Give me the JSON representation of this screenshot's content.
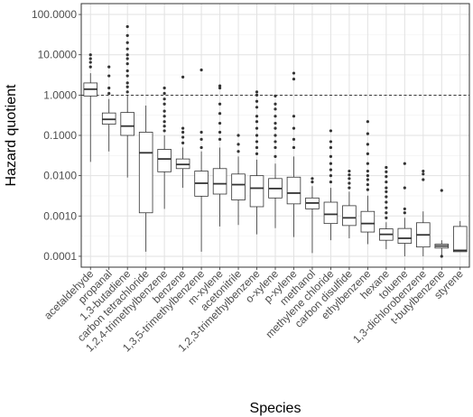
{
  "chart_data": {
    "type": "box",
    "xlabel": "Species",
    "ylabel": "Hazard quotient",
    "yscale": "log",
    "ylim": [
      0.0001,
      100
    ],
    "yticks": [
      {
        "value": 0.0001,
        "label": "0.0001"
      },
      {
        "value": 0.001,
        "label": "0.0010"
      },
      {
        "value": 0.01,
        "label": "0.0100"
      },
      {
        "value": 0.1,
        "label": "0.1000"
      },
      {
        "value": 1,
        "label": "1.0000"
      },
      {
        "value": 10,
        "label": "10.0000"
      },
      {
        "value": 100,
        "label": "100.0000"
      }
    ],
    "reference_line": {
      "value": 1,
      "style": "dashed"
    },
    "grid": true,
    "series": [
      {
        "category": "acetaldehyde",
        "whisker_low": 0.022,
        "q1": 0.95,
        "median": 1.4,
        "q3": 2.0,
        "whisker_high": 3.5,
        "outliers": [
          5,
          6.5,
          8,
          10
        ]
      },
      {
        "category": "propanal",
        "whisker_low": 0.04,
        "q1": 0.19,
        "median": 0.25,
        "q3": 0.36,
        "whisker_high": 0.8,
        "outliers": [
          1.1,
          1.5,
          3,
          5
        ]
      },
      {
        "category": "1,3-butadiene",
        "whisker_low": 0.009,
        "q1": 0.1,
        "median": 0.17,
        "q3": 0.37,
        "whisker_high": 1.0,
        "outliers": [
          1.2,
          1.6,
          2,
          3,
          4,
          6,
          8,
          10,
          14,
          20,
          30,
          50
        ]
      },
      {
        "category": "carbon tetrachloride",
        "whisker_low": 0.00013,
        "q1": 0.0012,
        "median": 0.037,
        "q3": 0.12,
        "whisker_high": 0.55,
        "outliers": []
      },
      {
        "category": "1,2,4-trimethylbenzene",
        "whisker_low": 0.0015,
        "q1": 0.0125,
        "median": 0.026,
        "q3": 0.045,
        "whisker_high": 0.1,
        "outliers": [
          0.13,
          0.17,
          0.22,
          0.3,
          0.4,
          0.6,
          0.8,
          1.1,
          1.5
        ]
      },
      {
        "category": "benzene",
        "whisker_low": 0.005,
        "q1": 0.015,
        "median": 0.019,
        "q3": 0.026,
        "whisker_high": 0.05,
        "outliers": [
          0.065,
          0.09,
          0.12,
          0.15,
          2.8
        ]
      },
      {
        "category": "1,3,5-trimethylbenzene",
        "whisker_low": 0.00013,
        "q1": 0.0031,
        "median": 0.0065,
        "q3": 0.013,
        "whisker_high": 0.04,
        "outliers": [
          0.05,
          0.08,
          0.12,
          4.2
        ]
      },
      {
        "category": "m-xylene",
        "whisker_low": 0.00055,
        "q1": 0.0035,
        "median": 0.0063,
        "q3": 0.015,
        "whisker_high": 0.05,
        "outliers": [
          0.08,
          0.12,
          0.2,
          0.35,
          0.6,
          1.5,
          1.7
        ]
      },
      {
        "category": "acetonitrile",
        "whisker_low": 0.0006,
        "q1": 0.0025,
        "median": 0.006,
        "q3": 0.011,
        "whisker_high": 0.03,
        "outliers": [
          0.04,
          0.06,
          0.1
        ]
      },
      {
        "category": "1,2,3-trimethylbenzene",
        "whisker_low": 0.00035,
        "q1": 0.0017,
        "median": 0.0049,
        "q3": 0.01,
        "whisker_high": 0.025,
        "outliers": [
          0.035,
          0.05,
          0.07,
          0.1,
          0.15,
          0.22,
          0.3,
          0.5,
          0.7,
          1.0,
          1.2
        ]
      },
      {
        "category": "o-xylene",
        "whisker_low": 0.0005,
        "q1": 0.0028,
        "median": 0.0048,
        "q3": 0.0085,
        "whisker_high": 0.02,
        "outliers": [
          0.03,
          0.05,
          0.07,
          0.1,
          0.15,
          0.2,
          0.3,
          0.45,
          0.6,
          0.95
        ]
      },
      {
        "category": "p-xylene",
        "whisker_low": 0.0003,
        "q1": 0.002,
        "median": 0.0037,
        "q3": 0.0092,
        "whisker_high": 0.03,
        "outliers": [
          0.05,
          0.08,
          0.15,
          0.3,
          2.5,
          3.5
        ]
      },
      {
        "category": "methanol",
        "whisker_low": 0.00012,
        "q1": 0.0015,
        "median": 0.0021,
        "q3": 0.0028,
        "whisker_high": 0.0055,
        "outliers": [
          0.007,
          0.0085
        ]
      },
      {
        "category": "methylene chloride",
        "whisker_low": 0.00025,
        "q1": 0.00065,
        "median": 0.0011,
        "q3": 0.0022,
        "whisker_high": 0.005,
        "outliers": [
          0.007,
          0.01,
          0.014,
          0.02,
          0.03,
          0.05,
          0.07,
          0.13
        ]
      },
      {
        "category": "carbon disulfide",
        "whisker_low": 0.00028,
        "q1": 0.00058,
        "median": 0.0009,
        "q3": 0.0018,
        "whisker_high": 0.004,
        "outliers": [
          0.005,
          0.0065,
          0.0085,
          0.0105,
          0.013
        ]
      },
      {
        "category": "ethylbenzene",
        "whisker_low": 0.0002,
        "q1": 0.0004,
        "median": 0.00065,
        "q3": 0.0013,
        "whisker_high": 0.0032,
        "outliers": [
          0.0045,
          0.006,
          0.008,
          0.01,
          0.013,
          0.02,
          0.035,
          0.06,
          0.11,
          0.22
        ]
      },
      {
        "category": "hexane",
        "whisker_low": 0.00015,
        "q1": 0.00025,
        "median": 0.00035,
        "q3": 0.00048,
        "whisker_high": 0.0007,
        "outliers": [
          0.0009,
          0.0012,
          0.0016,
          0.0022,
          0.003,
          0.004,
          0.005,
          0.007,
          0.0095,
          0.0125,
          0.016
        ]
      },
      {
        "category": "toluene",
        "whisker_low": 0.0001,
        "q1": 0.00021,
        "median": 0.00028,
        "q3": 0.00049,
        "whisker_high": 0.0009,
        "outliers": [
          0.0012,
          0.0015,
          0.005,
          0.02
        ]
      },
      {
        "category": "1,3-dichlorobenzene",
        "whisker_low": 0.0001,
        "q1": 0.00017,
        "median": 0.00034,
        "q3": 0.00068,
        "whisker_high": 0.0013,
        "outliers": [
          0.008,
          0.011,
          0.013
        ]
      },
      {
        "category": "t-butylbenzene",
        "whisker_low": 0.0001,
        "q1": 0.00016,
        "median": 0.00018,
        "q3": 0.0002,
        "whisker_high": 0.00025,
        "outliers": [
          0.0001,
          0.0043
        ]
      },
      {
        "category": "styrene",
        "whisker_low": 0.00013,
        "q1": 0.00013,
        "median": 0.00014,
        "q3": 0.00055,
        "whisker_high": 0.00075,
        "outliers": []
      }
    ]
  }
}
